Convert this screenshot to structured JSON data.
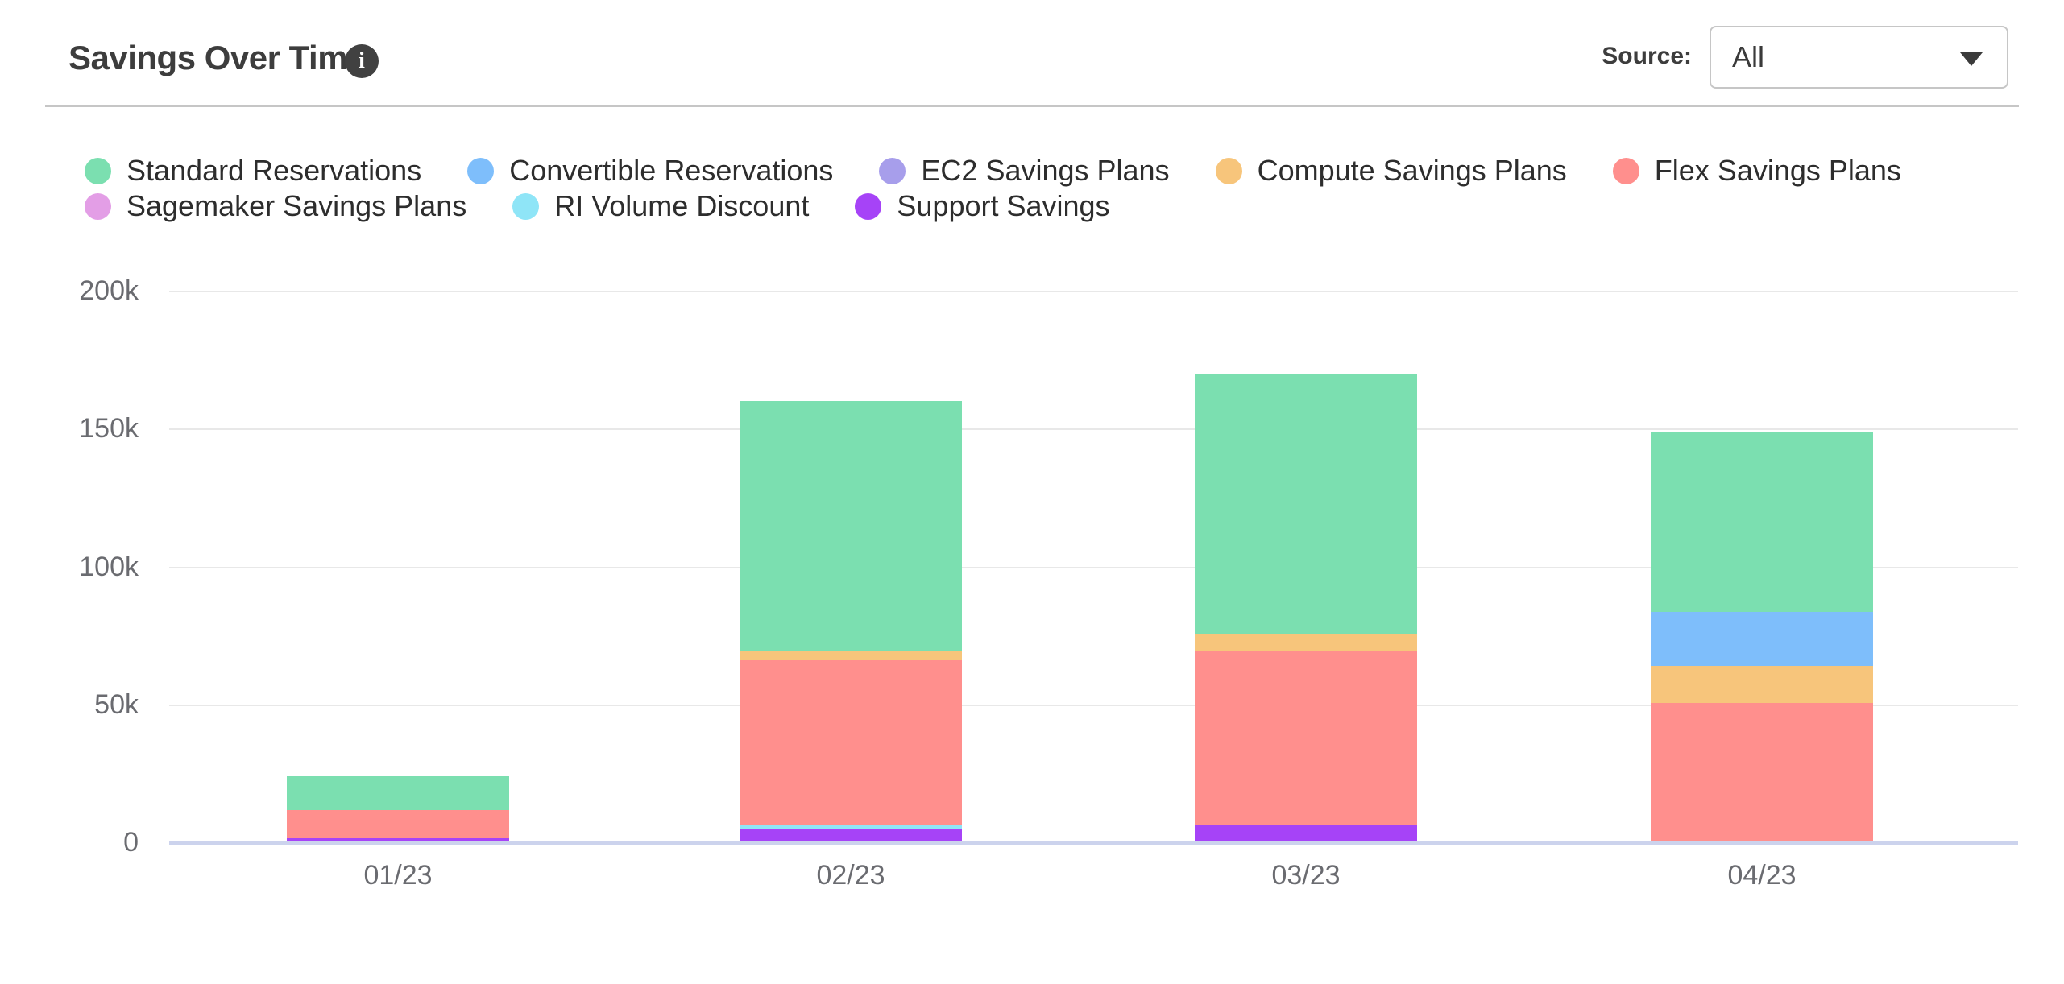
{
  "header": {
    "title": "Savings Over Time",
    "info_glyph": "i",
    "source_label": "Source:",
    "source_value": "All"
  },
  "chart_data": {
    "type": "bar",
    "subtype": "stacked",
    "title": "Savings Over Time",
    "categories": [
      "01/23",
      "02/23",
      "03/23",
      "04/23"
    ],
    "values_unit": "thousands",
    "y_axis": {
      "ticks": [
        "200k",
        "150k",
        "100k",
        "50k",
        "0"
      ],
      "max_k": 200,
      "min_k": 0
    },
    "grid": true,
    "legend_position": "top-left",
    "series": [
      {
        "name": "Standard Reservations",
        "color": "#7bdfb0",
        "values_k": [
          12.5,
          91,
          94,
          65
        ]
      },
      {
        "name": "Convertible Reservations",
        "color": "#7ebefb",
        "values_k": [
          0,
          0,
          0,
          19.5
        ]
      },
      {
        "name": "EC2 Savings Plans",
        "color": "#a79eeb",
        "values_k": [
          0,
          0,
          0,
          0
        ]
      },
      {
        "name": "Compute Savings Plans",
        "color": "#f7c57b",
        "values_k": [
          0,
          3,
          6.5,
          13.5
        ]
      },
      {
        "name": "Flex Savings Plans",
        "color": "#ff8f8d",
        "values_k": [
          10,
          60,
          63,
          50
        ]
      },
      {
        "name": "Sagemaker Savings Plans",
        "color": "#e39ee6",
        "values_k": [
          0,
          0,
          0,
          0
        ]
      },
      {
        "name": "RI Volume Discount",
        "color": "#8fe5f7",
        "values_k": [
          0,
          1,
          0,
          0
        ]
      },
      {
        "name": "Support Savings",
        "color": "#a643f7",
        "values_k": [
          1,
          4.5,
          5.5,
          0
        ]
      }
    ],
    "legend_rows": [
      [
        0,
        1,
        2,
        3,
        4
      ],
      [
        5,
        6,
        7
      ]
    ],
    "totals_k": [
      23.5,
      159.5,
      169,
      148
    ]
  },
  "colors": {
    "axis_line": "#ccd3ed",
    "gridline": "#e8e8e8",
    "axis_text": "#6a6b70",
    "divider": "#c6c6c6",
    "title_text": "#3d3d3d"
  }
}
